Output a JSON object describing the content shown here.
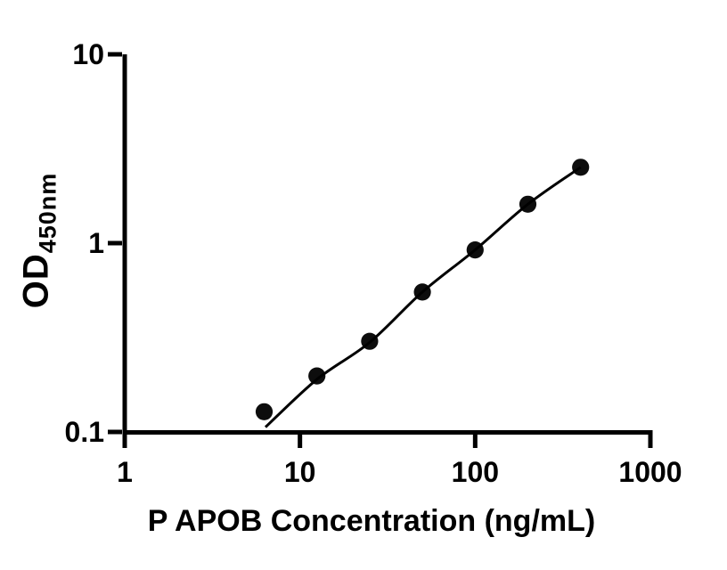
{
  "figure": {
    "background_color": "#ffffff",
    "axis_color": "#000000",
    "point_color": "#0d0d0d",
    "curve_color": "#000000"
  },
  "chart_data": {
    "type": "scatter",
    "title": "",
    "xlabel": "P APOB Concentration (ng/mL)",
    "ylabel": "OD",
    "ylabel_subscript": "450nm",
    "x_scale": "log",
    "y_scale": "log",
    "xlim": [
      1,
      1000
    ],
    "ylim": [
      0.1,
      10
    ],
    "x_ticks": [
      1,
      10,
      100,
      1000
    ],
    "x_tick_labels": [
      "1",
      "10",
      "100",
      "1000"
    ],
    "y_ticks": [
      0.1,
      1,
      10
    ],
    "y_tick_labels": [
      "0.1",
      "1",
      "10"
    ],
    "grid": false,
    "legend_position": "none",
    "series": [
      {
        "name": "standard-points",
        "kind": "scatter",
        "x": [
          6.25,
          12.5,
          25,
          50,
          100,
          200,
          400
        ],
        "y": [
          0.128,
          0.198,
          0.302,
          0.551,
          0.921,
          1.608,
          2.523
        ]
      },
      {
        "name": "fit-curve",
        "kind": "line",
        "x": [
          6.36,
          12.5,
          25,
          50,
          100,
          200,
          400
        ],
        "y": [
          0.106,
          0.19,
          0.298,
          0.551,
          0.921,
          1.608,
          2.523
        ]
      }
    ]
  }
}
